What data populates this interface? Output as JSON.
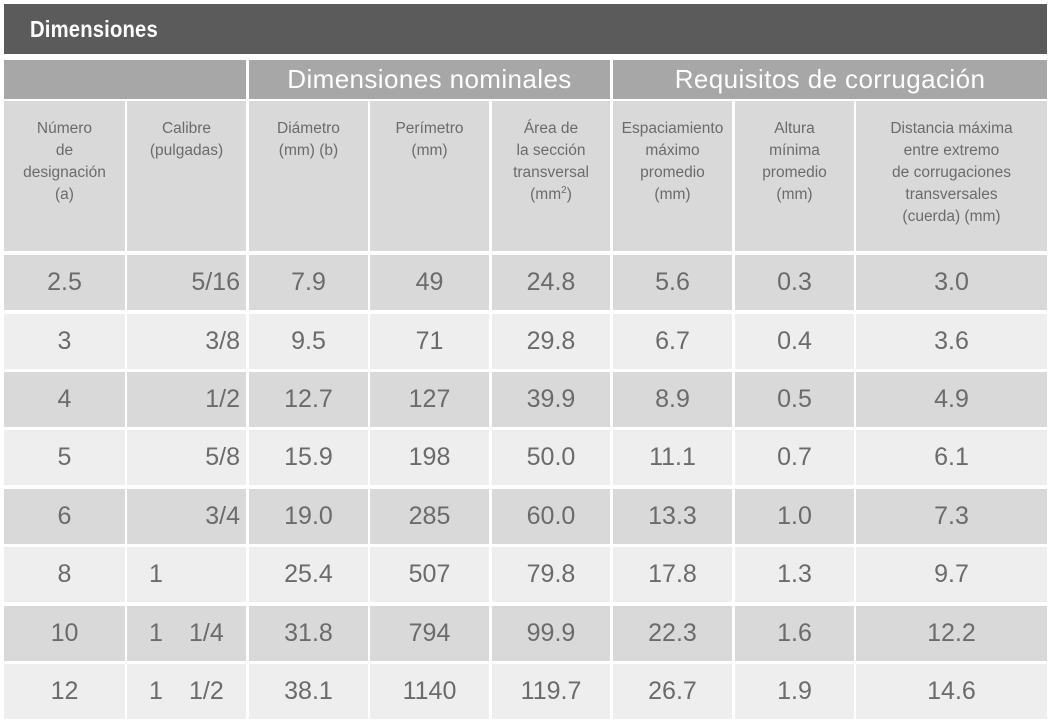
{
  "title": "Dimensiones",
  "groups": {
    "nominal": "Dimensiones nominales",
    "corrugation": "Requisitos de corrugación"
  },
  "columns": {
    "designation": "Número\nde\ndesignación\n(a)",
    "gauge": "Calibre\n(pulgadas)",
    "diameter": "Diámetro\n(mm) (b)",
    "perimeter": "Perímetro\n(mm)",
    "area": "Área de\nla sección\ntransversal\n(mm",
    "area_sup": "2",
    "area_close": ")",
    "spacing": "Espaciamiento\nmáximo\npromedio\n(mm)",
    "height": "Altura\nmínima\npromedio\n(mm)",
    "distance": "Distancia máxima\nentre extremo\nde corrugaciones\ntransversales\n(cuerda) (mm)"
  },
  "rows": [
    {
      "designation": "2.5",
      "gauge_whole": "",
      "gauge_frac": "5/16",
      "diameter": "7.9",
      "perimeter": "49",
      "area": "24.8",
      "spacing": "5.6",
      "height": "0.3",
      "distance": "3.0"
    },
    {
      "designation": "3",
      "gauge_whole": "",
      "gauge_frac": "3/8",
      "diameter": "9.5",
      "perimeter": "71",
      "area": "29.8",
      "spacing": "6.7",
      "height": "0.4",
      "distance": "3.6"
    },
    {
      "designation": "4",
      "gauge_whole": "",
      "gauge_frac": "1/2",
      "diameter": "12.7",
      "perimeter": "127",
      "area": "39.9",
      "spacing": "8.9",
      "height": "0.5",
      "distance": "4.9"
    },
    {
      "designation": "5",
      "gauge_whole": "",
      "gauge_frac": "5/8",
      "diameter": "15.9",
      "perimeter": "198",
      "area": "50.0",
      "spacing": "11.1",
      "height": "0.7",
      "distance": "6.1"
    },
    {
      "designation": "6",
      "gauge_whole": "",
      "gauge_frac": "3/4",
      "diameter": "19.0",
      "perimeter": "285",
      "area": "60.0",
      "spacing": "13.3",
      "height": "1.0",
      "distance": "7.3"
    },
    {
      "designation": "8",
      "gauge_whole": "1",
      "gauge_frac": "",
      "diameter": "25.4",
      "perimeter": "507",
      "area": "79.8",
      "spacing": "17.8",
      "height": "1.3",
      "distance": "9.7"
    },
    {
      "designation": "10",
      "gauge_whole": "1",
      "gauge_frac": "1/4",
      "diameter": "31.8",
      "perimeter": "794",
      "area": "99.9",
      "spacing": "22.3",
      "height": "1.6",
      "distance": "12.2"
    },
    {
      "designation": "12",
      "gauge_whole": "1",
      "gauge_frac": "1/2",
      "diameter": "38.1",
      "perimeter": "1140",
      "area": "119.7",
      "spacing": "26.7",
      "height": "1.9",
      "distance": "14.6"
    }
  ]
}
